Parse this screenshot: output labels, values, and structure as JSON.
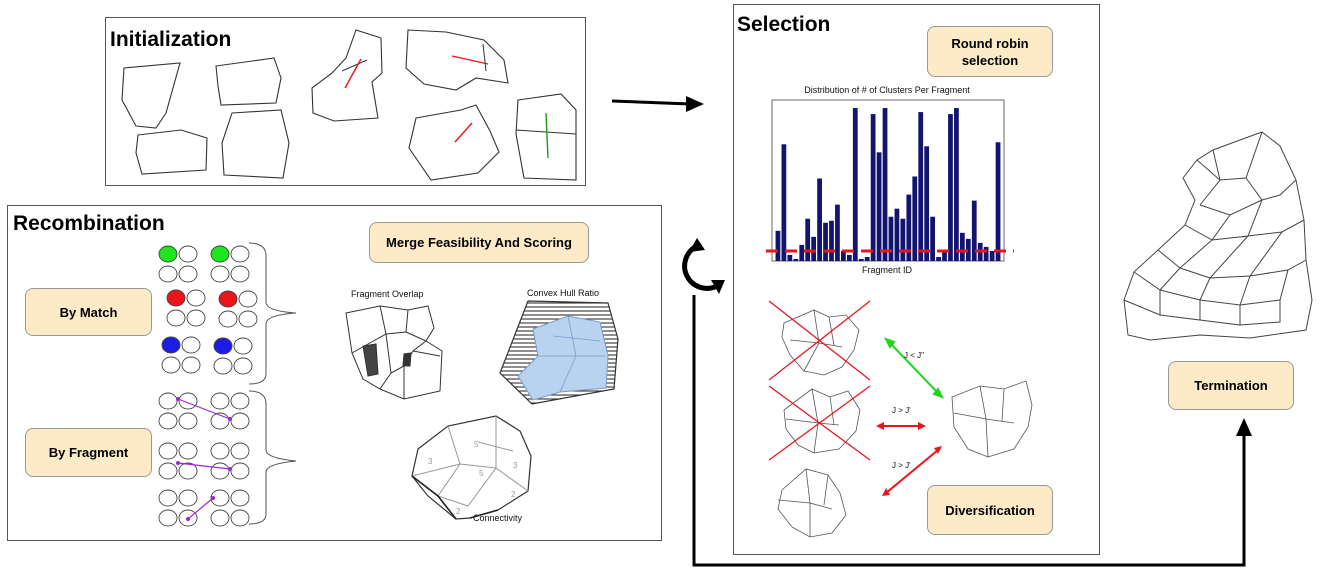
{
  "panels": {
    "initialization": {
      "title": "Initialization"
    },
    "recombination": {
      "title": "Recombination"
    },
    "selection": {
      "title": "Selection"
    }
  },
  "recombination": {
    "by_match": "By Match",
    "by_fragment": "By Fragment",
    "merge_scoring": "Merge Feasibility And Scoring",
    "fragment_overlap": "Fragment Overlap",
    "convex_hull_ratio": "Convex Hull Ratio",
    "connectivity": "Connectivity",
    "connectivity_numbers": [
      "3",
      "5",
      "5",
      "3",
      "2",
      "2"
    ]
  },
  "selection": {
    "round_robin": "Round robin selection",
    "diversification": "Diversification",
    "dominance": [
      "J < J''",
      "J > J'",
      "J > J'"
    ]
  },
  "termination": {
    "label": "Termination"
  },
  "chart_data": {
    "type": "bar",
    "title": "Distribution of # of Clusters Per Fragment",
    "xlabel": "Fragment ID",
    "ylabel": "",
    "values": [
      1.5,
      5.8,
      0.3,
      0.1,
      0.8,
      2.1,
      1.2,
      4.1,
      1.9,
      2.0,
      2.8,
      0.5,
      0.3,
      7.6,
      0.1,
      0.2,
      7.3,
      5.4,
      7.6,
      2.2,
      2.6,
      2.1,
      3.3,
      4.2,
      7.4,
      5.7,
      2.2,
      0.2,
      0.5,
      7.3,
      7.6,
      1.4,
      1.1,
      3.0,
      0.9,
      0.7,
      0.5,
      5.9
    ],
    "ylim": [
      0,
      8
    ],
    "threshold": 0.5,
    "bar_color": "#131370",
    "threshold_color": "#e8161b",
    "grid": false
  },
  "colors": {
    "match_green": "#1ee61e",
    "match_red": "#e8161b",
    "match_blue": "#1c1ce6",
    "link_purple": "#9c27d6",
    "hull_blue": "#b9d2f0",
    "diverse_green": "#22d422"
  }
}
